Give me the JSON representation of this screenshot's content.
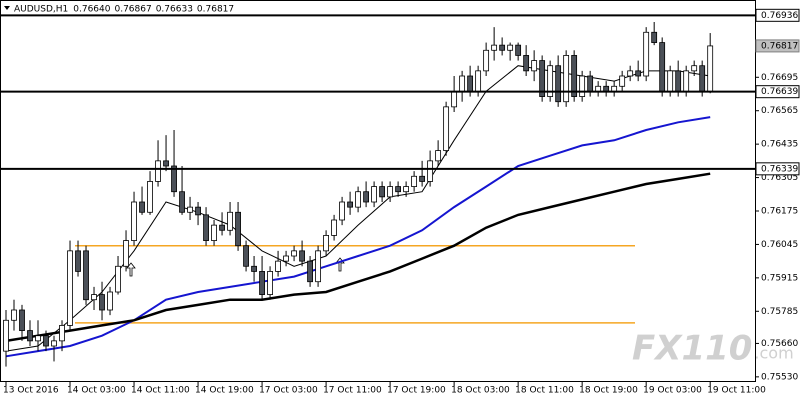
{
  "chart_data": {
    "type": "candlestick",
    "title": "AUDUSD,H1",
    "header_prices": [
      "0.76640",
      "0.76867",
      "0.76633",
      "0.76817"
    ],
    "open": [
      0.7563,
      0.7575,
      0.7579,
      0.7571,
      0.7567,
      0.7569,
      0.7565,
      0.7567,
      0.7573,
      0.7602,
      0.7602,
      0.7583,
      0.7585,
      0.7579,
      0.7586,
      0.7596,
      0.7606,
      0.7621,
      0.7617,
      0.7629,
      0.7637,
      0.7635,
      0.7625,
      0.7617,
      0.7619,
      0.7616,
      0.7606,
      0.7612,
      0.761,
      0.7617,
      0.7604,
      0.7596,
      0.7594,
      0.7585,
      0.7594,
      0.7598,
      0.76,
      0.7602,
      0.7598,
      0.759,
      0.7602,
      0.7608,
      0.7614,
      0.7621,
      0.7619,
      0.7625,
      0.7621,
      0.7627,
      0.7623,
      0.7627,
      0.7625,
      0.7627,
      0.7631,
      0.7629,
      0.7637,
      0.7641,
      0.7658,
      0.7664,
      0.767,
      0.7664,
      0.7672,
      0.768,
      0.7682,
      0.768,
      0.7682,
      0.7678,
      0.7672,
      0.7676,
      0.7662,
      0.7674,
      0.766,
      0.7678,
      0.7662,
      0.767,
      0.7664,
      0.7666,
      0.7664,
      0.7666,
      0.767,
      0.7672,
      0.767,
      0.7687,
      0.7683,
      0.7664,
      0.7672,
      0.7664,
      0.7672,
      0.7674,
      0.7664
    ],
    "high": [
      0.7579,
      0.7583,
      0.7581,
      0.7575,
      0.7575,
      0.7571,
      0.7569,
      0.7575,
      0.7606,
      0.7606,
      0.7604,
      0.7588,
      0.759,
      0.7588,
      0.76,
      0.761,
      0.7625,
      0.7627,
      0.7633,
      0.7645,
      0.7647,
      0.7649,
      0.7635,
      0.7623,
      0.7621,
      0.7619,
      0.7614,
      0.7617,
      0.7621,
      0.7621,
      0.7606,
      0.76,
      0.76,
      0.7596,
      0.7602,
      0.7602,
      0.7604,
      0.7606,
      0.76,
      0.7604,
      0.761,
      0.7616,
      0.7623,
      0.7625,
      0.7627,
      0.7629,
      0.7629,
      0.7629,
      0.7629,
      0.7629,
      0.7629,
      0.7633,
      0.7637,
      0.7641,
      0.7645,
      0.766,
      0.767,
      0.7672,
      0.7674,
      0.7674,
      0.7683,
      0.7689,
      0.7685,
      0.7683,
      0.7683,
      0.7682,
      0.768,
      0.7678,
      0.7676,
      0.7678,
      0.768,
      0.768,
      0.7672,
      0.7672,
      0.7668,
      0.7668,
      0.7668,
      0.7672,
      0.7674,
      0.7676,
      0.7689,
      0.7691,
      0.7685,
      0.7674,
      0.7676,
      0.7674,
      0.7676,
      0.7676,
      0.76867
    ],
    "low": [
      0.7557,
      0.7571,
      0.7567,
      0.7565,
      0.7563,
      0.7563,
      0.7559,
      0.7563,
      0.7571,
      0.7592,
      0.7581,
      0.7579,
      0.7575,
      0.7577,
      0.7585,
      0.7594,
      0.7604,
      0.7616,
      0.7616,
      0.7627,
      0.7633,
      0.7623,
      0.7616,
      0.7614,
      0.7612,
      0.7604,
      0.7604,
      0.7608,
      0.7608,
      0.7602,
      0.7594,
      0.759,
      0.7583,
      0.7583,
      0.7592,
      0.7596,
      0.7598,
      0.7596,
      0.7588,
      0.7588,
      0.76,
      0.7606,
      0.7612,
      0.7616,
      0.7617,
      0.7619,
      0.7619,
      0.7621,
      0.7621,
      0.7623,
      0.7623,
      0.7625,
      0.7627,
      0.7627,
      0.7635,
      0.7639,
      0.7656,
      0.766,
      0.7662,
      0.7662,
      0.767,
      0.7676,
      0.7678,
      0.7676,
      0.7676,
      0.767,
      0.7668,
      0.766,
      0.766,
      0.7658,
      0.7658,
      0.766,
      0.766,
      0.7662,
      0.7662,
      0.7662,
      0.7662,
      0.7664,
      0.7668,
      0.7668,
      0.7668,
      0.7682,
      0.7662,
      0.7662,
      0.7662,
      0.7662,
      0.767,
      0.7662,
      0.76633
    ],
    "close": [
      0.7575,
      0.7579,
      0.7571,
      0.7567,
      0.7569,
      0.7565,
      0.7567,
      0.7573,
      0.7602,
      0.7594,
      0.7583,
      0.7585,
      0.7579,
      0.7586,
      0.7596,
      0.7606,
      0.7621,
      0.7617,
      0.7629,
      0.7637,
      0.7635,
      0.7625,
      0.7617,
      0.7619,
      0.7616,
      0.7606,
      0.7612,
      0.761,
      0.7617,
      0.7604,
      0.7596,
      0.7594,
      0.7585,
      0.7594,
      0.7598,
      0.76,
      0.7602,
      0.7598,
      0.759,
      0.7602,
      0.7608,
      0.7614,
      0.7621,
      0.7619,
      0.7625,
      0.7621,
      0.7627,
      0.7623,
      0.7627,
      0.7625,
      0.7627,
      0.7631,
      0.7629,
      0.7637,
      0.7641,
      0.7658,
      0.7664,
      0.767,
      0.7664,
      0.7672,
      0.768,
      0.7682,
      0.768,
      0.7682,
      0.7678,
      0.7672,
      0.7676,
      0.7662,
      0.7674,
      0.766,
      0.7678,
      0.7662,
      0.767,
      0.7664,
      0.7666,
      0.7664,
      0.7666,
      0.767,
      0.7672,
      0.767,
      0.7687,
      0.7683,
      0.7664,
      0.7672,
      0.7664,
      0.7672,
      0.7674,
      0.7664,
      0.76817
    ],
    "bull_color": "#ffffff",
    "bear_color": "#4b5058",
    "lines": [
      {
        "color": "#000000",
        "width": 1,
        "x": [
          0,
          4,
          8,
          12,
          16,
          20,
          24,
          28,
          32,
          36,
          40,
          44,
          48,
          52,
          56,
          60,
          64,
          68,
          72,
          76,
          80,
          84,
          88
        ],
        "values": [
          0.7563,
          0.7565,
          0.7575,
          0.7586,
          0.7602,
          0.7621,
          0.7617,
          0.7612,
          0.7602,
          0.7596,
          0.76,
          0.7612,
          0.7623,
          0.7625,
          0.7645,
          0.7664,
          0.7674,
          0.7672,
          0.767,
          0.7668,
          0.7672,
          0.7672,
          0.767
        ]
      },
      {
        "color": "#1515d0",
        "width": 2,
        "x": [
          0,
          4,
          8,
          12,
          16,
          20,
          24,
          28,
          32,
          36,
          40,
          44,
          48,
          52,
          56,
          60,
          64,
          68,
          72,
          76,
          80,
          84,
          88
        ],
        "values": [
          0.7561,
          0.7563,
          0.7565,
          0.7569,
          0.7575,
          0.7583,
          0.7586,
          0.7588,
          0.759,
          0.7592,
          0.7596,
          0.76,
          0.7604,
          0.761,
          0.7619,
          0.7627,
          0.7635,
          0.7639,
          0.7643,
          0.7645,
          0.7649,
          0.7652,
          0.7654
        ]
      },
      {
        "color": "#000000",
        "width": 2.5,
        "x": [
          0,
          4,
          8,
          12,
          16,
          20,
          24,
          28,
          32,
          36,
          40,
          44,
          48,
          52,
          56,
          60,
          64,
          68,
          72,
          76,
          80,
          84,
          88
        ],
        "values": [
          0.7567,
          0.7569,
          0.7571,
          0.7573,
          0.7575,
          0.7579,
          0.7581,
          0.7583,
          0.7583,
          0.7585,
          0.7586,
          0.759,
          0.7594,
          0.7599,
          0.7604,
          0.7611,
          0.7616,
          0.7619,
          0.7622,
          0.7625,
          0.7628,
          0.763,
          0.7632
        ]
      }
    ],
    "levels": [
      0.76936,
      0.76639,
      0.76339
    ],
    "level_color": "#000000",
    "zones": [
      0.7604,
      0.7574
    ],
    "zone_color": "#f5a623",
    "last_price": 0.76817,
    "xlim": [
      -0.75,
      93.6
    ],
    "xticks": [
      {
        "value": 0,
        "label": "13 Oct 2016"
      },
      {
        "value": 8,
        "label": "14 Oct 03:00"
      },
      {
        "value": 16,
        "label": "14 Oct 11:00"
      },
      {
        "value": 24,
        "label": "14 Oct 19:00"
      },
      {
        "value": 32,
        "label": "17 Oct 03:00"
      },
      {
        "value": 40,
        "label": "17 Oct 11:00"
      },
      {
        "value": 48,
        "label": "17 Oct 19:00"
      },
      {
        "value": 56,
        "label": "18 Oct 03:00"
      },
      {
        "value": 64,
        "label": "18 Oct 11:00"
      },
      {
        "value": 72,
        "label": "18 Oct 19:00"
      },
      {
        "value": 80,
        "label": "19 Oct 03:00"
      },
      {
        "value": 88,
        "label": "19 Oct 11:00"
      }
    ],
    "ylim": [
      0.7551,
      0.7698
    ],
    "yticks": [
      0.76695,
      0.76565,
      0.76435,
      0.76305,
      0.76175,
      0.76045,
      0.75915,
      0.75785,
      {
        "value": 0.7566,
        "label": "0.75660"
      },
      {
        "value": 0.7553,
        "label": "0.75530"
      }
    ],
    "watermark": "FX110",
    "watermark_suffix": ".com"
  }
}
